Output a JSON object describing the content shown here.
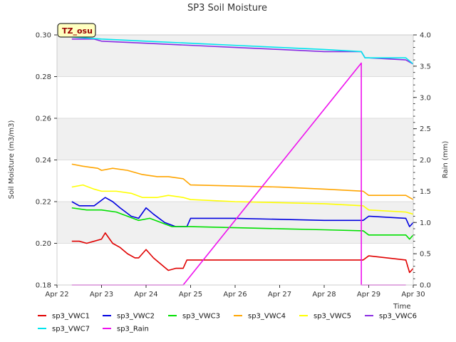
{
  "chart_data": {
    "type": "line",
    "title": "SP3 Soil Moisture",
    "site_label": "TZ_osu",
    "xlabel": "Time",
    "ylabel": "Soil Moisture (m3/m3)",
    "y2label": "Rain (mm)",
    "xlim": [
      "2024-04-22",
      "2024-04-30"
    ],
    "ylim": [
      0.18,
      0.3
    ],
    "y2lim": [
      0.0,
      4.0
    ],
    "x_ticks": [
      "Apr 22",
      "Apr 23",
      "Apr 24",
      "Apr 25",
      "Apr 26",
      "Apr 27",
      "Apr 28",
      "Apr 29",
      "Apr 30"
    ],
    "y_ticks": [
      "0.18",
      "0.20",
      "0.22",
      "0.24",
      "0.26",
      "0.28",
      "0.30"
    ],
    "y2_ticks": [
      "0.0",
      "0.5",
      "1.0",
      "1.5",
      "2.0",
      "2.5",
      "3.0",
      "3.5",
      "4.0"
    ],
    "grid": "horizontal bands",
    "legend_position": "bottom",
    "series": [
      {
        "name": "sp3_VWC1",
        "color": "#e00000",
        "axis": "left",
        "x": [
          "2024-04-22 08:00",
          "2024-04-22 12:00",
          "2024-04-22 16:00",
          "2024-04-23 00:00",
          "2024-04-23 02:00",
          "2024-04-23 06:00",
          "2024-04-23 10:00",
          "2024-04-23 14:00",
          "2024-04-23 18:00",
          "2024-04-23 20:00",
          "2024-04-24 00:00",
          "2024-04-24 04:00",
          "2024-04-24 08:00",
          "2024-04-24 12:00",
          "2024-04-24 16:00",
          "2024-04-24 20:00",
          "2024-04-24 22:00",
          "2024-04-25 00:00",
          "2024-04-26 00:00",
          "2024-04-27 00:00",
          "2024-04-28 00:00",
          "2024-04-28 21:00",
          "2024-04-29 00:00",
          "2024-04-29 20:00",
          "2024-04-29 22:00",
          "2024-04-30 00:00"
        ],
        "y": [
          0.201,
          0.201,
          0.2,
          0.202,
          0.205,
          0.2,
          0.198,
          0.195,
          0.193,
          0.193,
          0.197,
          0.193,
          0.19,
          0.187,
          0.188,
          0.188,
          0.192,
          0.192,
          0.192,
          0.192,
          0.192,
          0.192,
          0.194,
          0.192,
          0.186,
          0.188
        ]
      },
      {
        "name": "sp3_VWC2",
        "color": "#0000e0",
        "axis": "left",
        "x": [
          "2024-04-22 08:00",
          "2024-04-22 12:00",
          "2024-04-22 20:00",
          "2024-04-23 02:00",
          "2024-04-23 06:00",
          "2024-04-23 10:00",
          "2024-04-23 16:00",
          "2024-04-23 20:00",
          "2024-04-24 00:00",
          "2024-04-24 04:00",
          "2024-04-24 10:00",
          "2024-04-24 16:00",
          "2024-04-24 22:00",
          "2024-04-25 00:00",
          "2024-04-26 00:00",
          "2024-04-27 00:00",
          "2024-04-28 00:00",
          "2024-04-28 21:00",
          "2024-04-29 00:00",
          "2024-04-29 20:00",
          "2024-04-29 22:00",
          "2024-04-30 00:00"
        ],
        "y": [
          0.22,
          0.218,
          0.218,
          0.222,
          0.22,
          0.217,
          0.213,
          0.212,
          0.217,
          0.214,
          0.21,
          0.208,
          0.208,
          0.212,
          0.212,
          0.2115,
          0.211,
          0.211,
          0.213,
          0.212,
          0.208,
          0.21
        ]
      },
      {
        "name": "sp3_VWC3",
        "color": "#00e000",
        "axis": "left",
        "x": [
          "2024-04-22 08:00",
          "2024-04-22 16:00",
          "2024-04-23 00:00",
          "2024-04-23 08:00",
          "2024-04-23 14:00",
          "2024-04-23 20:00",
          "2024-04-24 02:00",
          "2024-04-24 08:00",
          "2024-04-24 14:00",
          "2024-04-24 20:00",
          "2024-04-25 00:00",
          "2024-04-26 00:00",
          "2024-04-27 00:00",
          "2024-04-28 00:00",
          "2024-04-28 21:00",
          "2024-04-29 00:00",
          "2024-04-29 20:00",
          "2024-04-29 22:00",
          "2024-04-30 00:00"
        ],
        "y": [
          0.217,
          0.216,
          0.216,
          0.215,
          0.213,
          0.211,
          0.212,
          0.21,
          0.208,
          0.208,
          0.208,
          0.2075,
          0.207,
          0.2065,
          0.206,
          0.204,
          0.204,
          0.202,
          0.204
        ]
      },
      {
        "name": "sp3_VWC4",
        "color": "#ffa500",
        "axis": "left",
        "x": [
          "2024-04-22 08:00",
          "2024-04-22 14:00",
          "2024-04-22 22:00",
          "2024-04-23 00:00",
          "2024-04-23 06:00",
          "2024-04-23 14:00",
          "2024-04-23 22:00",
          "2024-04-24 06:00",
          "2024-04-24 12:00",
          "2024-04-24 20:00",
          "2024-04-25 00:00",
          "2024-04-26 00:00",
          "2024-04-27 00:00",
          "2024-04-28 00:00",
          "2024-04-28 21:00",
          "2024-04-29 00:00",
          "2024-04-29 20:00",
          "2024-04-29 22:00",
          "2024-04-30 00:00"
        ],
        "y": [
          0.238,
          0.237,
          0.236,
          0.235,
          0.236,
          0.235,
          0.233,
          0.232,
          0.232,
          0.231,
          0.228,
          0.2275,
          0.227,
          0.226,
          0.225,
          0.223,
          0.223,
          0.222,
          0.221
        ]
      },
      {
        "name": "sp3_VWC5",
        "color": "#ffff00",
        "axis": "left",
        "x": [
          "2024-04-22 08:00",
          "2024-04-22 14:00",
          "2024-04-22 20:00",
          "2024-04-23 00:00",
          "2024-04-23 08:00",
          "2024-04-23 16:00",
          "2024-04-23 22:00",
          "2024-04-24 06:00",
          "2024-04-24 12:00",
          "2024-04-24 20:00",
          "2024-04-25 00:00",
          "2024-04-26 00:00",
          "2024-04-27 00:00",
          "2024-04-28 00:00",
          "2024-04-28 21:00",
          "2024-04-29 00:00",
          "2024-04-29 20:00",
          "2024-04-30 00:00"
        ],
        "y": [
          0.227,
          0.228,
          0.226,
          0.225,
          0.225,
          0.224,
          0.222,
          0.222,
          0.223,
          0.222,
          0.221,
          0.22,
          0.2195,
          0.219,
          0.218,
          0.216,
          0.215,
          0.214
        ]
      },
      {
        "name": "sp3_VWC6",
        "color": "#8a2be2",
        "axis": "left",
        "x": [
          "2024-04-22 08:00",
          "2024-04-22 20:00",
          "2024-04-23 00:00",
          "2024-04-24 00:00",
          "2024-04-25 00:00",
          "2024-04-26 00:00",
          "2024-04-27 00:00",
          "2024-04-28 00:00",
          "2024-04-28 20:00",
          "2024-04-28 22:00",
          "2024-04-29 00:00",
          "2024-04-29 20:00",
          "2024-04-29 22:00",
          "2024-04-30 00:00"
        ],
        "y": [
          0.298,
          0.298,
          0.297,
          0.296,
          0.295,
          0.294,
          0.293,
          0.292,
          0.292,
          0.289,
          0.289,
          0.288,
          0.287,
          0.286
        ]
      },
      {
        "name": "sp3_VWC7",
        "color": "#00e5ee",
        "axis": "left",
        "x": [
          "2024-04-22 08:00",
          "2024-04-23 00:00",
          "2024-04-24 00:00",
          "2024-04-25 00:00",
          "2024-04-26 00:00",
          "2024-04-27 00:00",
          "2024-04-28 00:00",
          "2024-04-28 20:00",
          "2024-04-28 22:00",
          "2024-04-29 00:00",
          "2024-04-29 20:00",
          "2024-04-30 00:00"
        ],
        "y": [
          0.299,
          0.298,
          0.297,
          0.296,
          0.295,
          0.294,
          0.293,
          0.292,
          0.289,
          0.289,
          0.289,
          0.286
        ]
      },
      {
        "name": "sp3_Rain",
        "color": "#ee11ee",
        "axis": "right",
        "x": [
          "2024-04-22 08:00",
          "2024-04-24 20:00",
          "2024-04-28 20:00",
          "2024-04-28 20:01",
          "2024-04-29 20:00"
        ],
        "y": [
          0.0,
          0.0,
          3.55,
          0.0,
          0.0
        ]
      }
    ]
  }
}
